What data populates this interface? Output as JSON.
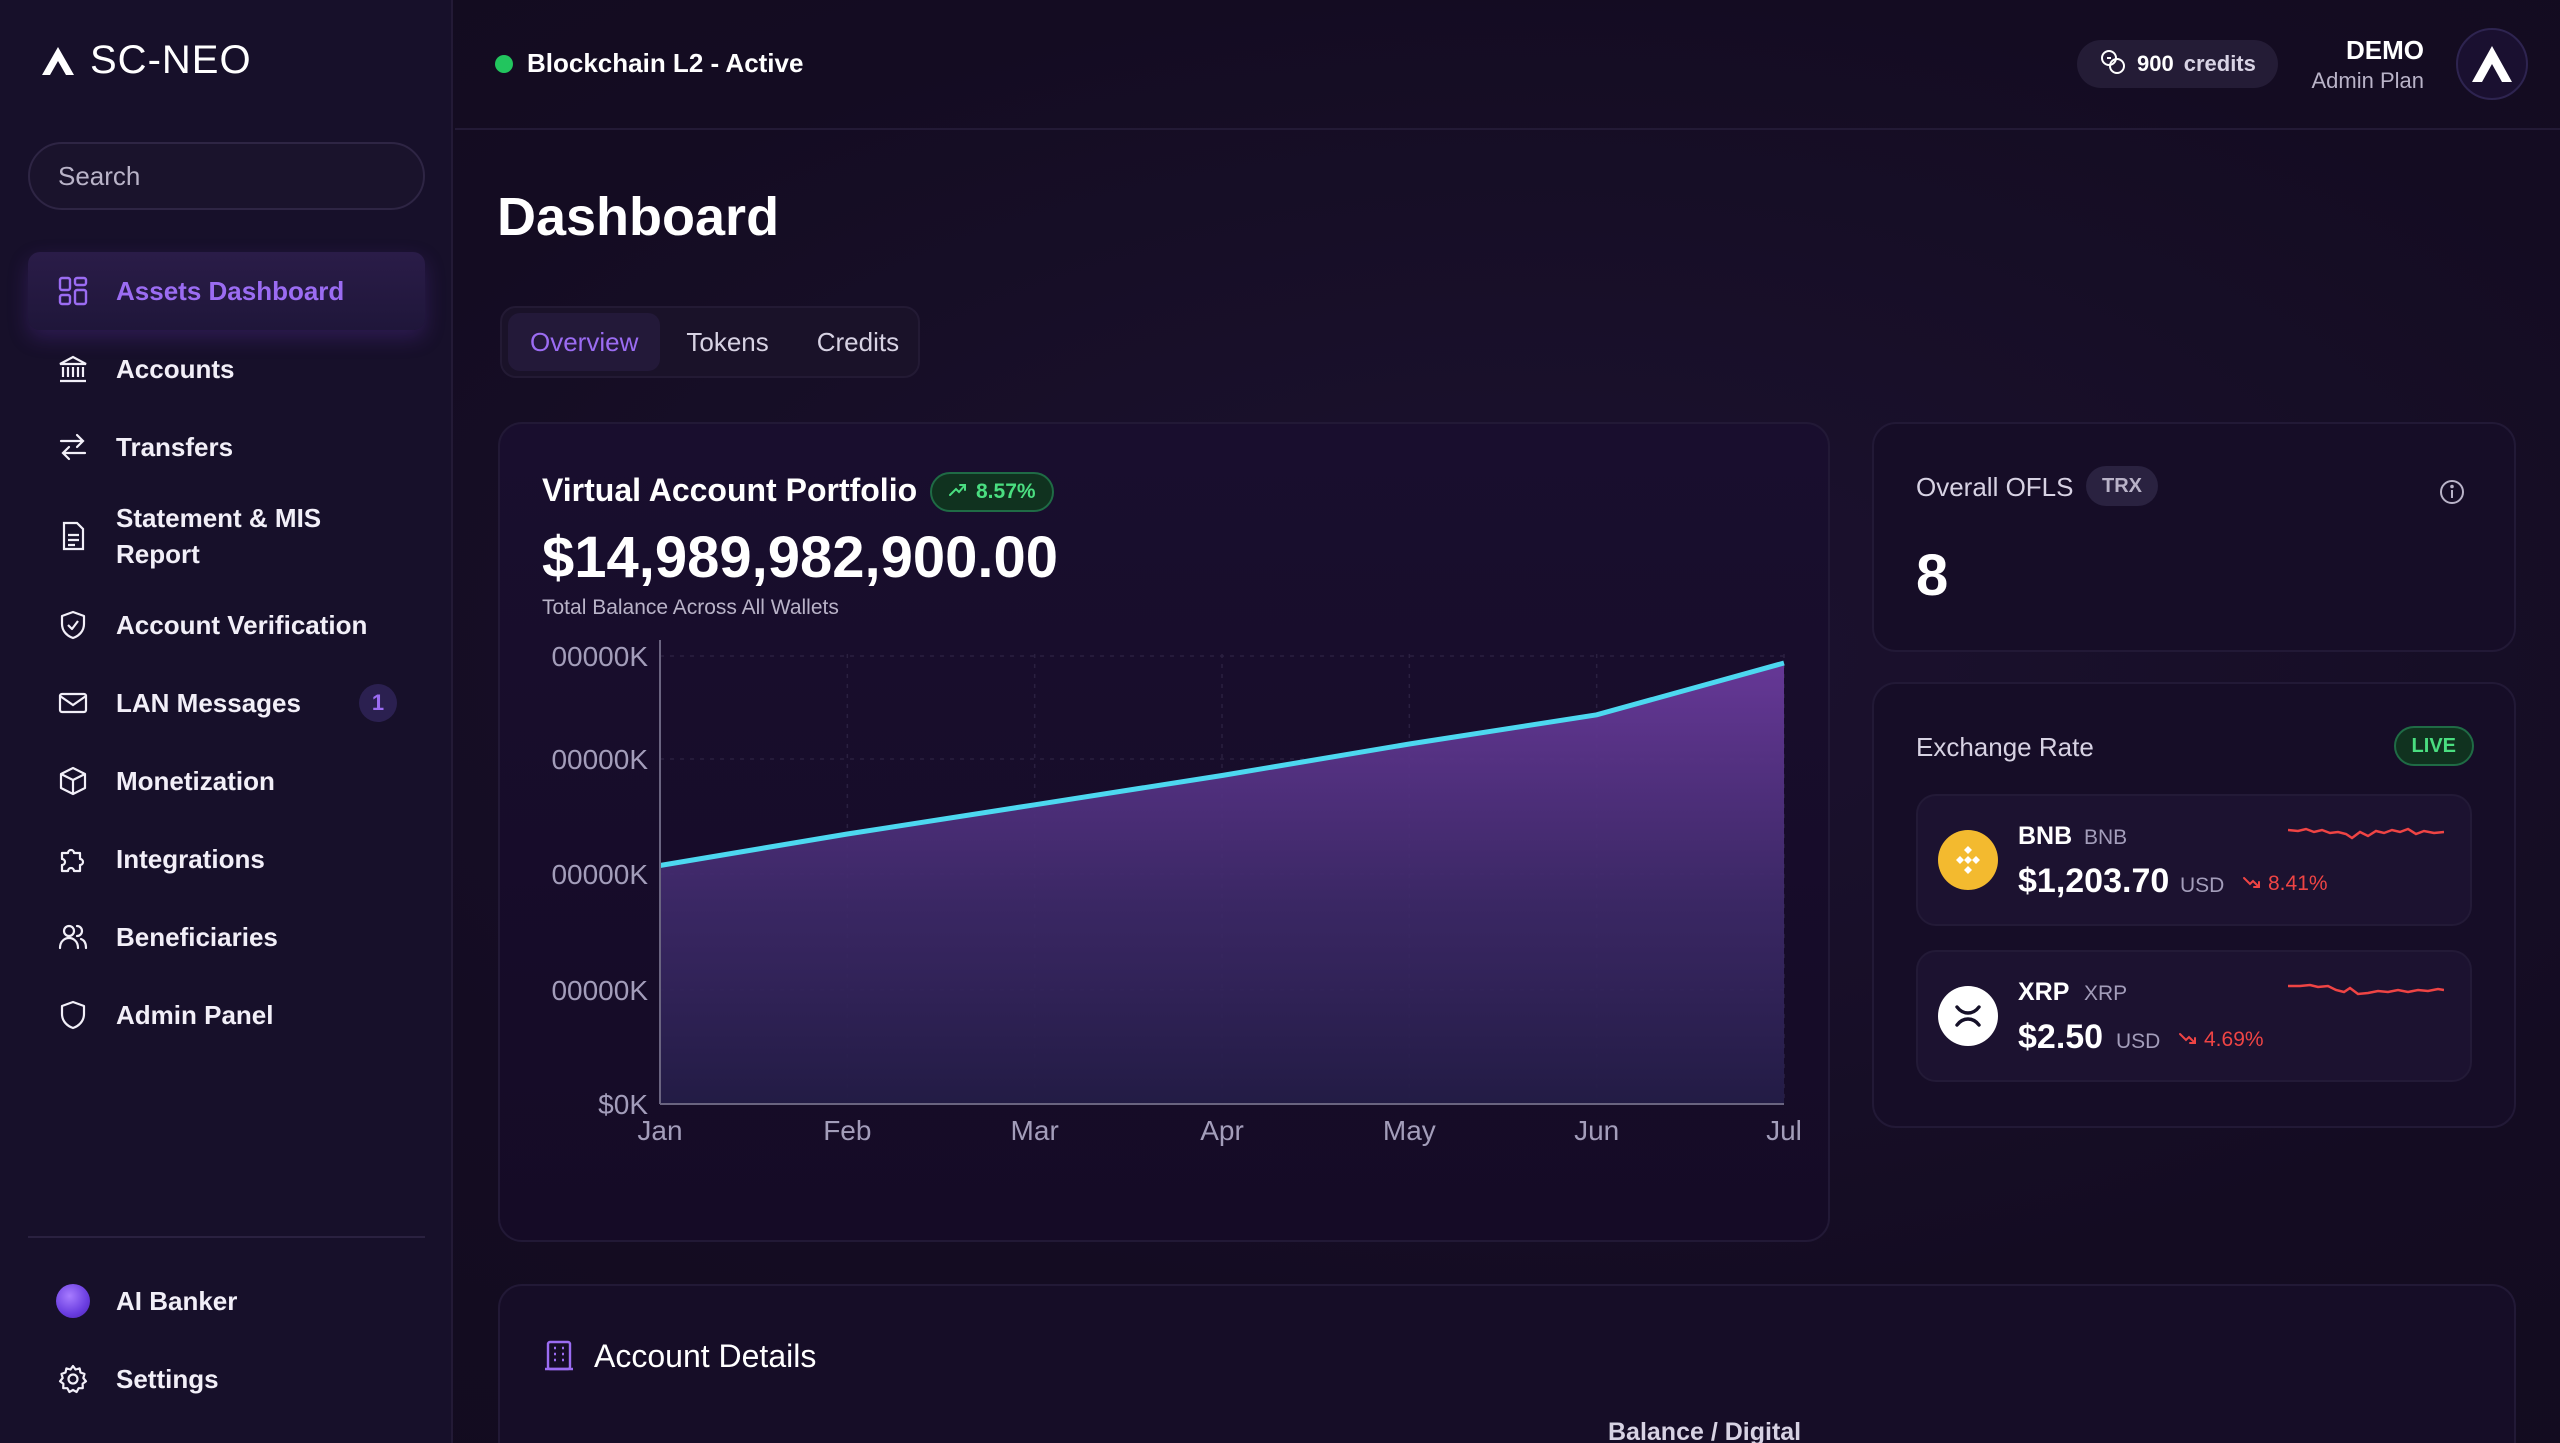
{
  "brand": {
    "name": "SC-NEO"
  },
  "search": {
    "placeholder": "Search"
  },
  "sidebar": {
    "items": [
      {
        "label": "Assets Dashboard",
        "icon": "grid-icon"
      },
      {
        "label": "Accounts",
        "icon": "bank-icon"
      },
      {
        "label": "Transfers",
        "icon": "arrows-transfer-icon"
      },
      {
        "label": "Statement & MIS Report",
        "icon": "document-icon"
      },
      {
        "label": "Account Verification",
        "icon": "shield-check-icon"
      },
      {
        "label": "LAN Messages",
        "icon": "mail-icon",
        "badge": "1"
      },
      {
        "label": "Monetization",
        "icon": "cube-icon"
      },
      {
        "label": "Integrations",
        "icon": "puzzle-icon"
      },
      {
        "label": "Beneficiaries",
        "icon": "users-icon"
      },
      {
        "label": "Admin Panel",
        "icon": "shield-icon"
      }
    ],
    "bottom": [
      {
        "label": "AI Banker",
        "icon": "ai-orb-icon"
      },
      {
        "label": "Settings",
        "icon": "gear-icon"
      }
    ]
  },
  "header": {
    "network_status": "Blockchain L2 - Active",
    "credits_count": "900",
    "credits_label": "credits",
    "user_name": "DEMO",
    "user_plan": "Admin Plan"
  },
  "main": {
    "title": "Dashboard",
    "tabs": [
      {
        "label": "Overview",
        "active": true
      },
      {
        "label": "Tokens",
        "active": false
      },
      {
        "label": "Credits",
        "active": false
      }
    ]
  },
  "portfolio": {
    "title": "Virtual Account Portfolio",
    "change": "8.57%",
    "total_value": "$14,989,982,900.00",
    "caption": "Total Balance Across All Wallets"
  },
  "ofls": {
    "title": "Overall OFLS",
    "tag": "TRX",
    "value": "8"
  },
  "exchange": {
    "title": "Exchange Rate",
    "live_label": "LIVE",
    "rates": [
      {
        "name": "BNB",
        "symbol": "BNB",
        "price": "$1,203.70",
        "currency": "USD",
        "change": "8.41%",
        "icon": "bnb-coin-icon"
      },
      {
        "name": "XRP",
        "symbol": "XRP",
        "price": "$2.50",
        "currency": "USD",
        "change": "4.69%",
        "icon": "xrp-coin-icon"
      }
    ]
  },
  "account_details": {
    "title": "Account Details",
    "partial_header": "Balance / Digital"
  },
  "colors": {
    "accent": "#9b6cf2",
    "positive": "#4ade80",
    "negative": "#ef4444",
    "line": "#4dd8f0",
    "status": "#22c55e"
  },
  "chart_data": {
    "type": "area",
    "x": [
      "Jan",
      "Feb",
      "Mar",
      "Apr",
      "May",
      "Jun",
      "Jul"
    ],
    "y_tick_labels": [
      "00000K",
      "00000K",
      "00000K",
      "00000K",
      "$0K"
    ],
    "values": [
      0.53,
      0.6,
      0.665,
      0.73,
      0.8,
      0.865,
      0.98
    ],
    "ylim": [
      0,
      1
    ],
    "grid": true,
    "title": "",
    "xlabel": "",
    "ylabel": ""
  }
}
